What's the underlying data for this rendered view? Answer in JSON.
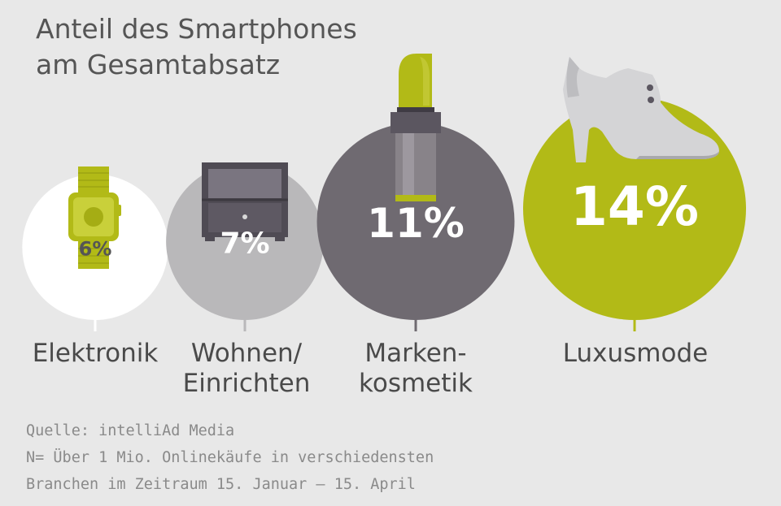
{
  "chart_data": {
    "type": "bubble",
    "title": [
      "Anteil des Smartphones",
      "am Gesamtabsatz"
    ],
    "categories": [
      "Elektronik",
      "Wohnen/\nEinrichten",
      "Marken-\nkosmetik",
      "Luxusmode"
    ],
    "values": [
      6,
      7,
      11,
      14
    ],
    "value_labels": [
      "6%",
      "7%",
      "11%",
      "14%"
    ],
    "unit": "%",
    "icons": [
      "smartwatch-icon",
      "nightstand-icon",
      "lipstick-icon",
      "high-heel-shoe-icon"
    ]
  },
  "source": {
    "lines": [
      "Quelle: intelliAd Media",
      "N= Über 1 Mio. Onlinekäufe in verschiedensten",
      "Branchen im Zeitraum 15. Januar – 15. April"
    ]
  },
  "colors": {
    "background": "#e8e8e8",
    "circles": [
      "#ffffff",
      "#b9b8ba",
      "#6f6a71",
      "#b2ba17"
    ],
    "value_text": [
      "#555555",
      "#ffffff",
      "#ffffff",
      "#ffffff"
    ],
    "accent_green": "#b2ba17",
    "text": "#4a4a4a",
    "source_text": "#8a8a8a"
  }
}
